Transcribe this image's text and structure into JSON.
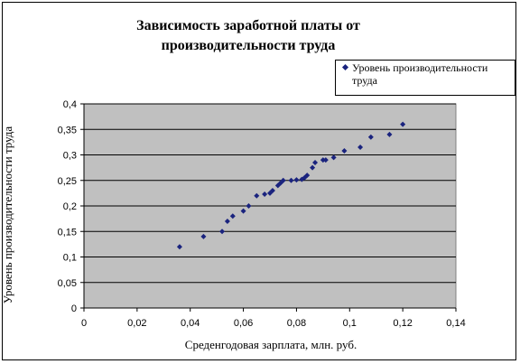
{
  "chart_data": {
    "type": "scatter",
    "title": "Зависимость заработной платы от производительности труда",
    "xlabel": "Среденгодовая зарплата, млн. руб.",
    "ylabel": "Уровень производительности труда",
    "xlim": [
      0,
      0.14
    ],
    "ylim": [
      0,
      0.4
    ],
    "x_ticks": [
      "0",
      "0,02",
      "0,04",
      "0,06",
      "0,08",
      "0,1",
      "0,12",
      "0,14"
    ],
    "y_ticks": [
      "0",
      "0,05",
      "0,1",
      "0,15",
      "0,2",
      "0,25",
      "0,3",
      "0,35",
      "0,4"
    ],
    "grid": "horizontal",
    "legend": "top-right",
    "plot_background": "#c0c0c0",
    "marker_color": "#1a237e",
    "series": [
      {
        "name": "Уровень производительности труда",
        "points": [
          [
            0.036,
            0.12
          ],
          [
            0.045,
            0.14
          ],
          [
            0.052,
            0.15
          ],
          [
            0.054,
            0.17
          ],
          [
            0.056,
            0.18
          ],
          [
            0.06,
            0.19
          ],
          [
            0.062,
            0.2
          ],
          [
            0.065,
            0.22
          ],
          [
            0.068,
            0.223
          ],
          [
            0.07,
            0.225
          ],
          [
            0.071,
            0.23
          ],
          [
            0.073,
            0.24
          ],
          [
            0.074,
            0.245
          ],
          [
            0.075,
            0.25
          ],
          [
            0.078,
            0.25
          ],
          [
            0.08,
            0.251
          ],
          [
            0.082,
            0.252
          ],
          [
            0.083,
            0.255
          ],
          [
            0.084,
            0.26
          ],
          [
            0.086,
            0.275
          ],
          [
            0.087,
            0.285
          ],
          [
            0.09,
            0.29
          ],
          [
            0.091,
            0.29
          ],
          [
            0.094,
            0.295
          ],
          [
            0.098,
            0.308
          ],
          [
            0.104,
            0.315
          ],
          [
            0.108,
            0.335
          ],
          [
            0.115,
            0.34
          ],
          [
            0.12,
            0.36
          ]
        ]
      }
    ]
  }
}
